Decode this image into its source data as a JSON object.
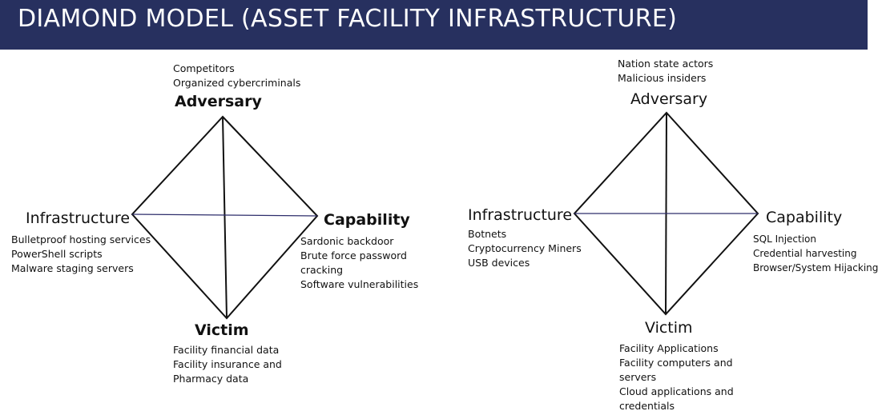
{
  "title": "DIAMOND MODEL (ASSET FACILITY INFRASTRUCTURE)",
  "colors": {
    "title_bar": "#27305f",
    "title_text": "#ffffff",
    "cross_line": "#2d2d6b"
  },
  "left": {
    "adversary": {
      "label": "Adversary",
      "items": [
        "Competitors",
        "Organized cybercriminals"
      ]
    },
    "infrastructure": {
      "label": "Infrastructure",
      "items": [
        "Bulletproof hosting services",
        "PowerShell scripts",
        "Malware staging servers"
      ]
    },
    "capability": {
      "label": "Capability",
      "items": [
        "Sardonic backdoor",
        "Brute force password cracking",
        "Software vulnerabilities"
      ]
    },
    "victim": {
      "label": "Victim",
      "items": [
        "Facility financial data",
        "Facility insurance and Pharmacy data"
      ]
    }
  },
  "right": {
    "adversary": {
      "label": "Adversary",
      "items": [
        "Nation state actors",
        "Malicious insiders"
      ]
    },
    "infrastructure": {
      "label": "Infrastructure",
      "items": [
        "Botnets",
        "Cryptocurrency Miners",
        "USB devices"
      ]
    },
    "capability": {
      "label": "Capability",
      "items": [
        "SQL Injection",
        "Credential harvesting",
        "Browser/System Hijacking"
      ]
    },
    "victim": {
      "label": "Victim",
      "items": [
        "Facility Applications",
        "Facility computers and servers",
        "Cloud applications and credentials"
      ]
    }
  }
}
